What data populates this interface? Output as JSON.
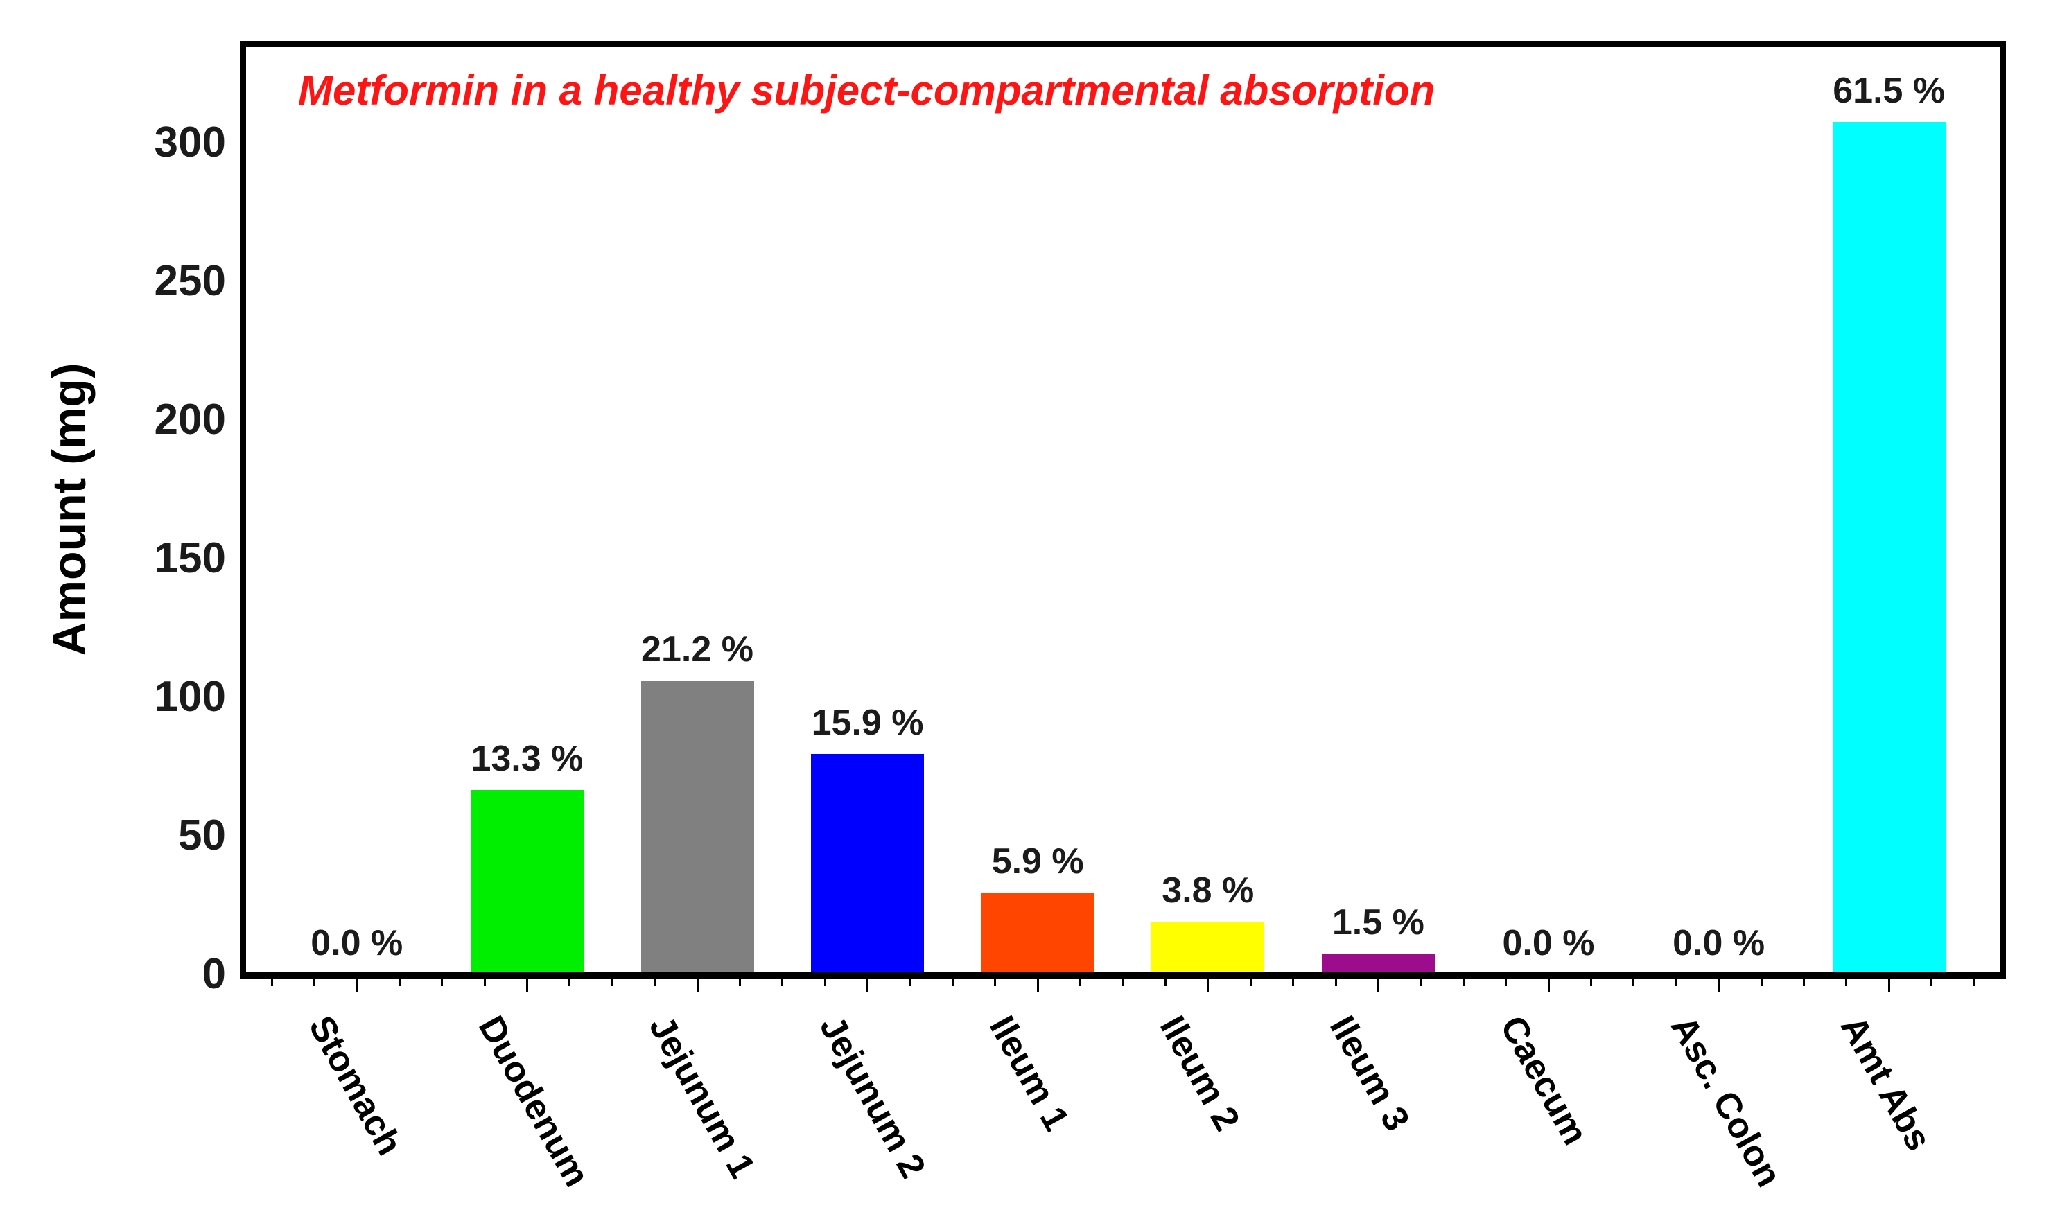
{
  "figure": {
    "background": "#FFFFFF"
  },
  "chart_data": {
    "type": "bar",
    "title": "Metformin in a healthy subject-compartmental absorption",
    "title_color": "#FF1414",
    "xlabel": "",
    "ylabel": "Amount (mg)",
    "ylim": [
      0,
      335
    ],
    "yticks": [
      0,
      50,
      100,
      150,
      200,
      250,
      300
    ],
    "grid": false,
    "legend": "none",
    "categories": [
      "Stomach",
      "Duodenum",
      "Jejunum 1",
      "Jejunum 2",
      "Ileum 1",
      "Ileum 2",
      "Ileum 3",
      "Caecum",
      "Asc. Colon",
      "Amt Abs"
    ],
    "values_mg": [
      0,
      66.5,
      106,
      79.5,
      29.5,
      19,
      7.5,
      0,
      0,
      307.5
    ],
    "percent_labels": [
      "0.0 %",
      "13.3 %",
      "21.2 %",
      "15.9 %",
      "5.9 %",
      "3.8 %",
      "1.5 %",
      "0.0 %",
      "0.0 %",
      "61.5 %"
    ],
    "bar_colors": [
      null,
      "#00EE00",
      "#808080",
      "#0000FF",
      "#FF4500",
      "#FFFF00",
      "#9E0C8E",
      null,
      null,
      "#00FFFF"
    ],
    "axis_color": "#000000",
    "tick_label_color": "#1b1b1b"
  }
}
